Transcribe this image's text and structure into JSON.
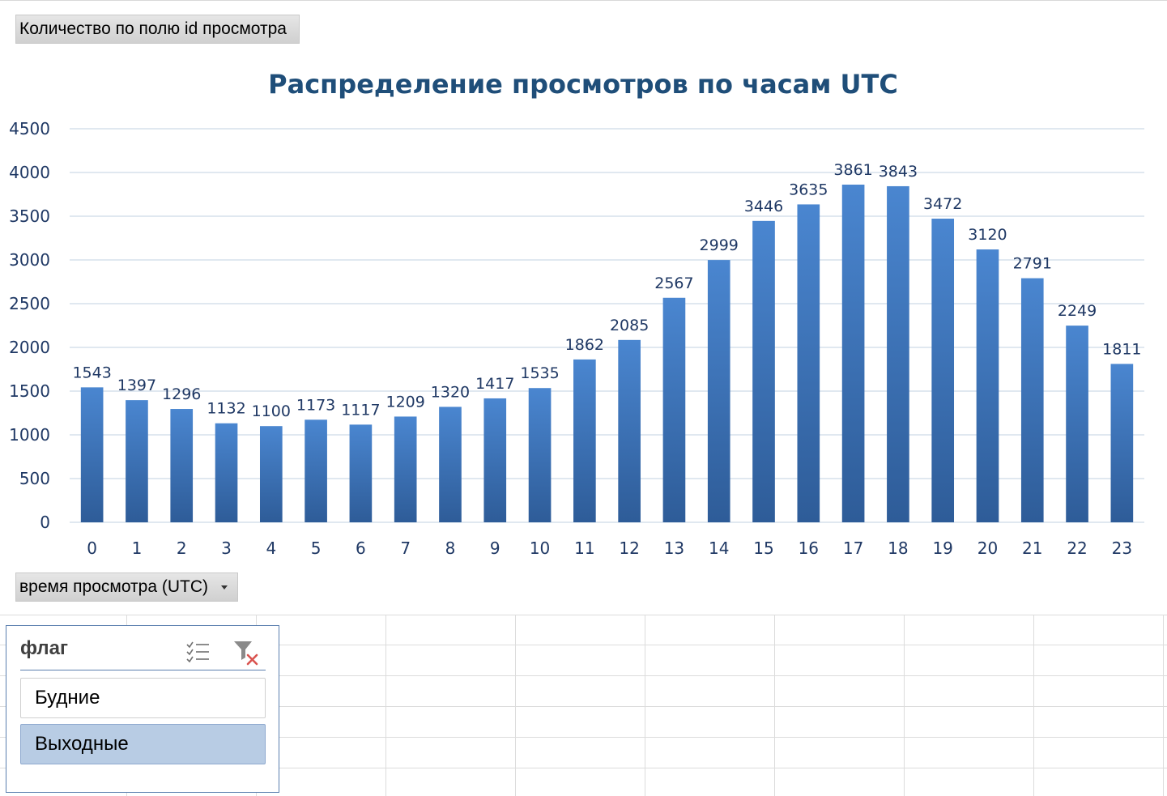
{
  "pivot": {
    "values_field_label": "Количество по полю id просмотра",
    "axis_field_label": "время просмотра (UTC)"
  },
  "chart_data": {
    "type": "bar",
    "title": "Распределение просмотров по часам UTC",
    "xlabel": "",
    "ylabel": "",
    "categories": [
      "0",
      "1",
      "2",
      "3",
      "4",
      "5",
      "6",
      "7",
      "8",
      "9",
      "10",
      "11",
      "12",
      "13",
      "14",
      "15",
      "16",
      "17",
      "18",
      "19",
      "20",
      "21",
      "22",
      "23"
    ],
    "values": [
      1543,
      1397,
      1296,
      1132,
      1100,
      1173,
      1117,
      1209,
      1320,
      1417,
      1535,
      1862,
      2085,
      2567,
      2999,
      3446,
      3635,
      3861,
      3843,
      3472,
      3120,
      2791,
      2249,
      1811
    ],
    "ylim": [
      0,
      4500
    ],
    "yticks": [
      0,
      500,
      1000,
      1500,
      2000,
      2500,
      3000,
      3500,
      4000,
      4500
    ],
    "data_labels": true,
    "grid": true,
    "legend": "none",
    "colors": {
      "bar_top": "#4a86d0",
      "bar_bottom": "#2e5c98",
      "title": "#1f4e79",
      "labels": "#1f3864",
      "gridline": "#d6e0ec"
    }
  },
  "slicer": {
    "title": "флаг",
    "multiselect_icon": "multi-select-icon",
    "clear_filter_icon": "clear-filter-icon",
    "items": [
      {
        "label": "Будние",
        "selected": false
      },
      {
        "label": "Выходные",
        "selected": true
      }
    ]
  }
}
